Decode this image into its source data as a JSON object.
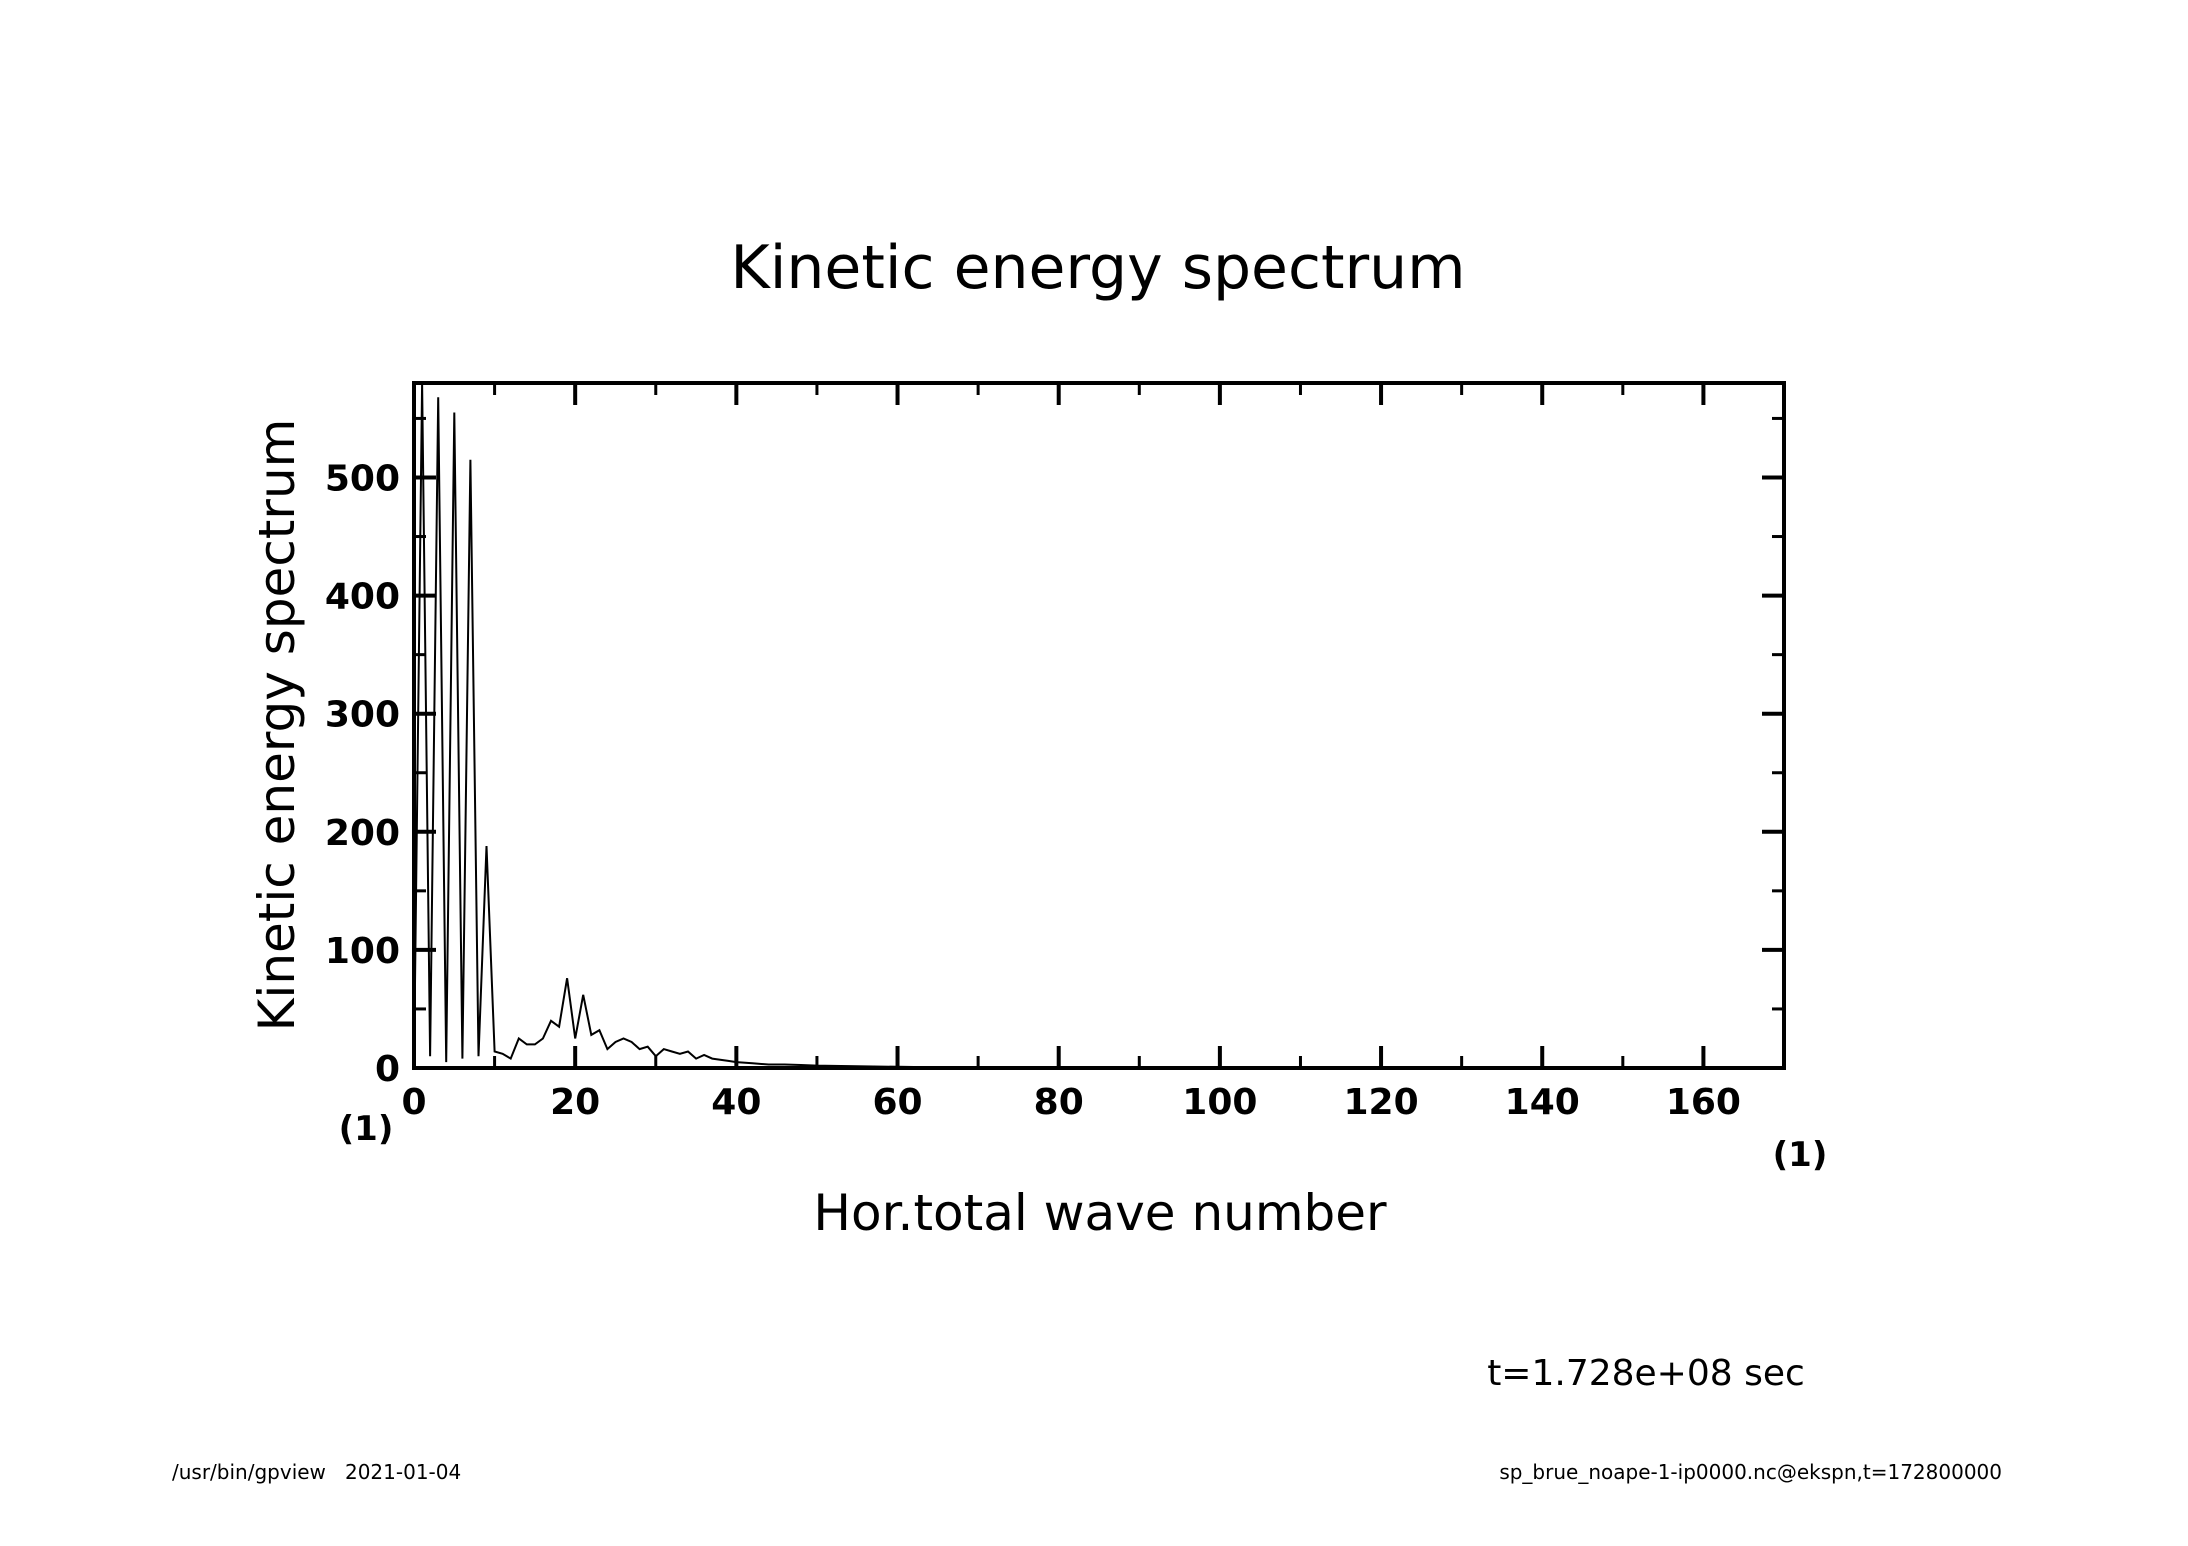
{
  "chart_data": {
    "type": "line",
    "title": "Kinetic energy spectrum",
    "xlabel": "Hor.total wave number",
    "ylabel": "Kinetic energy spectrum",
    "x_unit": "(1)",
    "y_unit": "(1)",
    "xlim": [
      0,
      170
    ],
    "ylim": [
      0,
      580
    ],
    "x_ticks": [
      0,
      20,
      40,
      60,
      80,
      100,
      120,
      140,
      160
    ],
    "y_ticks": [
      0,
      100,
      200,
      300,
      400,
      500
    ],
    "grid": false,
    "series": [
      {
        "x": [
          0,
          1,
          2,
          3,
          4,
          5,
          6,
          7,
          8,
          9,
          10,
          11,
          12,
          13,
          14,
          15,
          16,
          17,
          18,
          19,
          20,
          21,
          22,
          23,
          24,
          25,
          26,
          27,
          28,
          29,
          30,
          31,
          32,
          33,
          34,
          35,
          36,
          37,
          38,
          39,
          40,
          42,
          44,
          46,
          48,
          50,
          55,
          60,
          65,
          70,
          80,
          90,
          100,
          120,
          140,
          160,
          170
        ],
        "y": [
          0,
          580,
          10,
          568,
          5,
          555,
          8,
          515,
          10,
          188,
          14,
          12,
          8,
          25,
          20,
          20,
          25,
          40,
          35,
          76,
          25,
          62,
          28,
          32,
          16,
          22,
          25,
          22,
          16,
          18,
          10,
          16,
          14,
          12,
          14,
          8,
          11,
          8,
          7,
          6,
          5,
          4,
          3,
          3,
          2.5,
          2,
          1.5,
          1,
          0.5,
          0.3,
          0.2,
          0.1,
          0.05,
          0.02,
          0.01,
          0,
          0
        ]
      }
    ],
    "annotation": "t=1.728e+08 sec"
  },
  "footer": {
    "left": "/usr/bin/gpview   2021-01-04",
    "right": "sp_brue_noape-1-ip0000.nc@ekspn,t=172800000"
  }
}
